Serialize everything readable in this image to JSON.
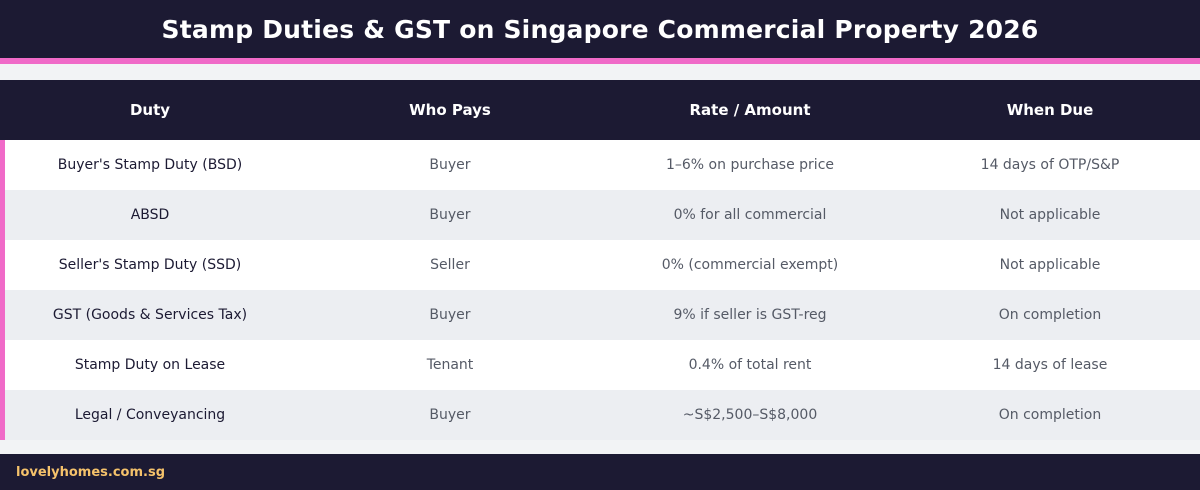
{
  "header": {
    "title": "Stamp Duties & GST on Singapore Commercial Property 2026"
  },
  "table": {
    "columns": [
      "Duty",
      "Who Pays",
      "Rate / Amount",
      "When Due"
    ],
    "rows": [
      [
        "Buyer's Stamp Duty (BSD)",
        "Buyer",
        "1–6% on purchase price",
        "14 days of OTP/S&P"
      ],
      [
        "ABSD",
        "Buyer",
        "0% for all commercial",
        "Not applicable"
      ],
      [
        "Seller's Stamp Duty (SSD)",
        "Seller",
        "0% (commercial exempt)",
        "Not applicable"
      ],
      [
        "GST (Goods & Services Tax)",
        "Buyer",
        "9% if seller is GST-reg",
        "On completion"
      ],
      [
        "Stamp Duty on Lease",
        "Tenant",
        "0.4% of total rent",
        "14 days of lease"
      ],
      [
        "Legal / Conveyancing",
        "Buyer",
        "~S$2,500–S$8,000",
        "On completion"
      ]
    ]
  },
  "footer": {
    "site": "lovelyhomes.com.sg"
  },
  "colors": {
    "navy": "#1c1a33",
    "accent_pink": "#f06ac8",
    "footer_text": "#f5c26b",
    "row_alt": "#eceef2"
  }
}
